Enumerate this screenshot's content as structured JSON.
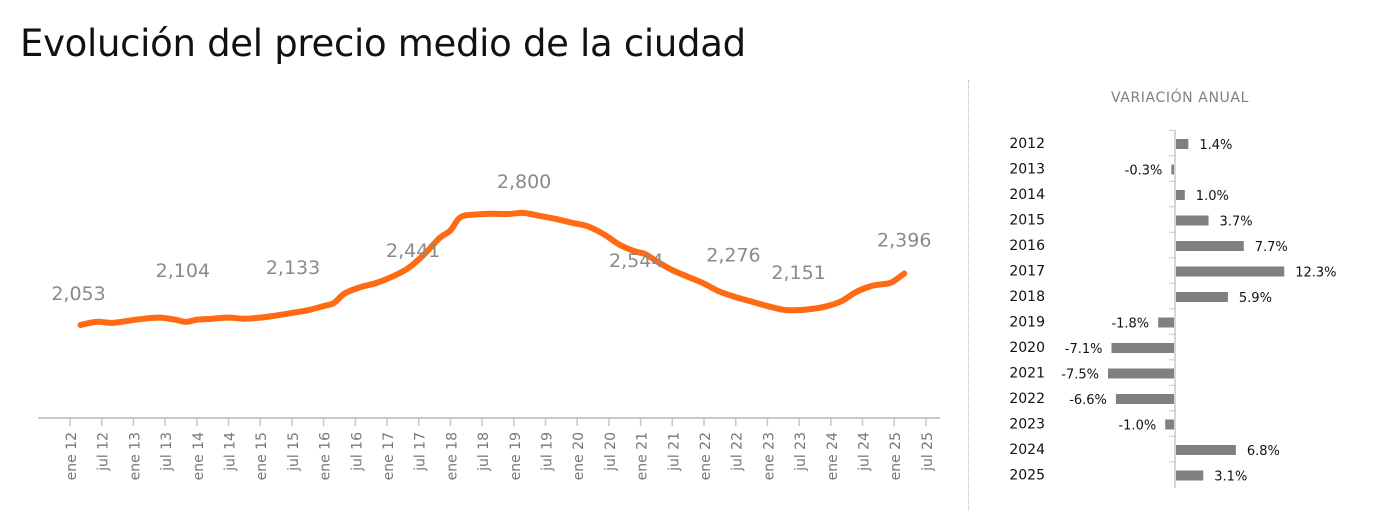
{
  "title": "Evolución del precio medio de la ciudad",
  "colors": {
    "line": "#ff6a13",
    "bars": "#808080",
    "axis": "#c8c8c8",
    "labels": "#8a8a8a"
  },
  "chart_data": [
    {
      "type": "line",
      "title": "",
      "x_tick_labels": [
        "ene 12",
        "jul 12",
        "ene 13",
        "jul 13",
        "ene 14",
        "jul 14",
        "ene 15",
        "jul 15",
        "ene 16",
        "jul 16",
        "ene 17",
        "jul 17",
        "ene 18",
        "jul 18",
        "ene 19",
        "jul 19",
        "ene 20",
        "jul 20",
        "ene 21",
        "jul 21",
        "ene 22",
        "jul 22",
        "ene 23",
        "jul 23",
        "ene 24",
        "jul 24",
        "ene 25",
        "jul 25"
      ],
      "series": [
        {
          "x": [
            "2012-03",
            "2012-06",
            "2012-09",
            "2012-12",
            "2013-03",
            "2013-06",
            "2013-09",
            "2013-11",
            "2014-01",
            "2014-04",
            "2014-07",
            "2014-10",
            "2015-01",
            "2015-04",
            "2015-07",
            "2015-10",
            "2016-01",
            "2016-03",
            "2016-05",
            "2016-08",
            "2016-11",
            "2017-02",
            "2017-05",
            "2017-08",
            "2017-11",
            "2018-01",
            "2018-03",
            "2018-06",
            "2018-09",
            "2018-12",
            "2019-03",
            "2019-06",
            "2019-09",
            "2019-12",
            "2020-03",
            "2020-06",
            "2020-09",
            "2020-12",
            "2021-02",
            "2021-04",
            "2021-07",
            "2021-10",
            "2022-01",
            "2022-04",
            "2022-07",
            "2022-10",
            "2023-01",
            "2023-04",
            "2023-06",
            "2023-09",
            "2023-12",
            "2024-03",
            "2024-06",
            "2024-09",
            "2024-12",
            "2025-01",
            "2025-03"
          ],
          "values": [
            2053,
            2074,
            2067,
            2081,
            2095,
            2102,
            2088,
            2074,
            2088,
            2095,
            2102,
            2095,
            2102,
            2116,
            2133,
            2151,
            2179,
            2200,
            2263,
            2305,
            2333,
            2375,
            2431,
            2521,
            2633,
            2682,
            2773,
            2790,
            2795,
            2793,
            2800,
            2780,
            2760,
            2735,
            2712,
            2660,
            2590,
            2544,
            2525,
            2480,
            2420,
            2375,
            2330,
            2276,
            2240,
            2210,
            2180,
            2155,
            2151,
            2158,
            2175,
            2210,
            2275,
            2315,
            2330,
            2345,
            2396
          ]
        }
      ],
      "data_labels": [
        {
          "x": "2012-03",
          "text": "2,053"
        },
        {
          "x": "2013-10",
          "text": "2,104"
        },
        {
          "x": "2015-08",
          "text": "2,133"
        },
        {
          "x": "2017-06",
          "text": "2,441"
        },
        {
          "x": "2019-03",
          "text": "2,800"
        },
        {
          "x": "2021-01",
          "text": "2,544"
        },
        {
          "x": "2022-04",
          "text": "2,276"
        },
        {
          "x": "2023-07",
          "text": "2,151"
        },
        {
          "x": "2025-03",
          "text": "2,396"
        }
      ],
      "grid": false
    },
    {
      "type": "bar",
      "orientation": "horizontal",
      "title": "VARIACIÓN ANUAL",
      "categories": [
        "2012",
        "2013",
        "2014",
        "2015",
        "2016",
        "2017",
        "2018",
        "2019",
        "2020",
        "2021",
        "2022",
        "2023",
        "2024",
        "2025"
      ],
      "values": [
        1.4,
        -0.3,
        1.0,
        3.7,
        7.7,
        12.3,
        5.9,
        -1.8,
        -7.1,
        -7.5,
        -6.6,
        -1.0,
        6.8,
        3.1
      ],
      "value_labels": [
        "1.4%",
        "-0.3%",
        "1.0%",
        "3.7%",
        "7.7%",
        "12.3%",
        "5.9%",
        "-1.8%",
        "-7.1%",
        "-7.5%",
        "-6.6%",
        "-1.0%",
        "6.8%",
        "3.1%"
      ],
      "grid": false
    }
  ]
}
